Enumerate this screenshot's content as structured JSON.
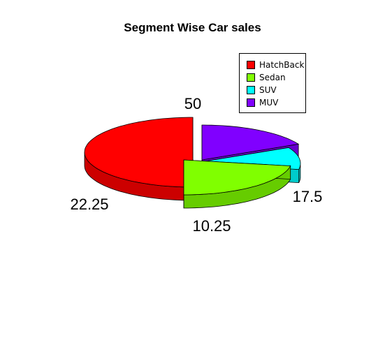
{
  "chart_data": {
    "type": "pie",
    "title": "Segment Wise Car sales",
    "categories": [
      "HatchBack",
      "Sedan",
      "SUV",
      "MUV"
    ],
    "values": [
      50,
      22.25,
      10.25,
      17.5
    ],
    "labels": [
      "50",
      "22.25",
      "10.25",
      "17.5"
    ],
    "colors": [
      "#FF0000",
      "#80FF00",
      "#00FFFF",
      "#8000FF"
    ],
    "legend_position": "top-right",
    "style": "3d-exploded"
  }
}
